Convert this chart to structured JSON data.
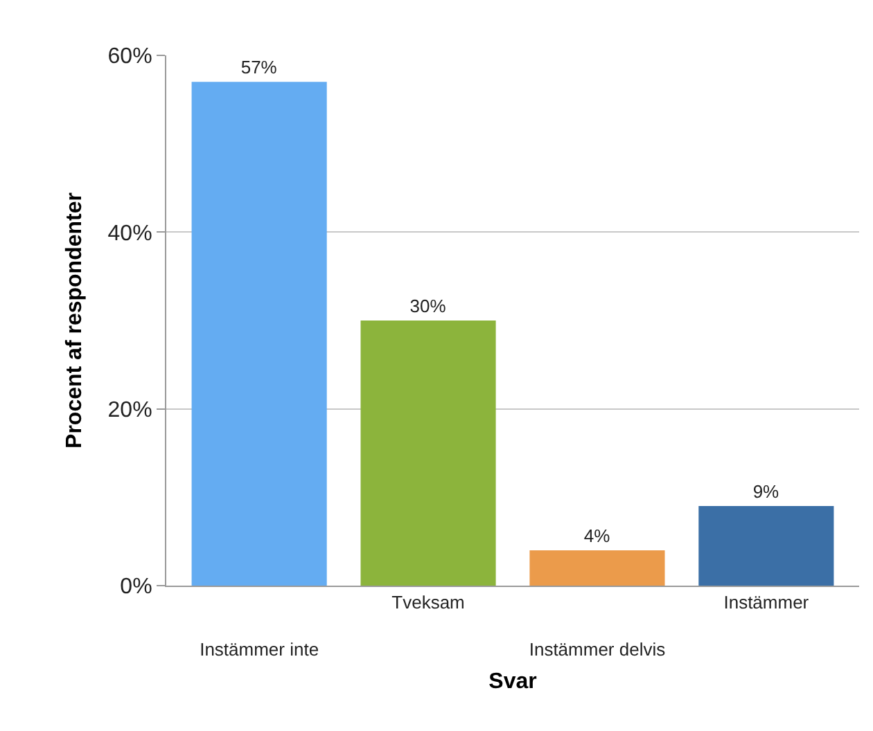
{
  "chart_data": {
    "type": "bar",
    "xlabel": "Svar",
    "ylabel": "Procent af respondenter",
    "categories": [
      "Instämmer inte",
      "Tveksam",
      "Instämmer delvis",
      "Instämmer"
    ],
    "values": [
      57,
      30,
      4,
      9
    ],
    "value_labels": [
      "57%",
      "30%",
      "4%",
      "9%"
    ],
    "colors": [
      "#64acf2",
      "#8cb43c",
      "#eb9b4b",
      "#3b6fa6"
    ],
    "ylim": [
      0,
      60
    ],
    "yticks": [
      {
        "value": 0,
        "label": "0%"
      },
      {
        "value": 20,
        "label": "20%"
      },
      {
        "value": 40,
        "label": "40%"
      },
      {
        "value": 60,
        "label": "60%"
      }
    ],
    "grid": "y"
  }
}
